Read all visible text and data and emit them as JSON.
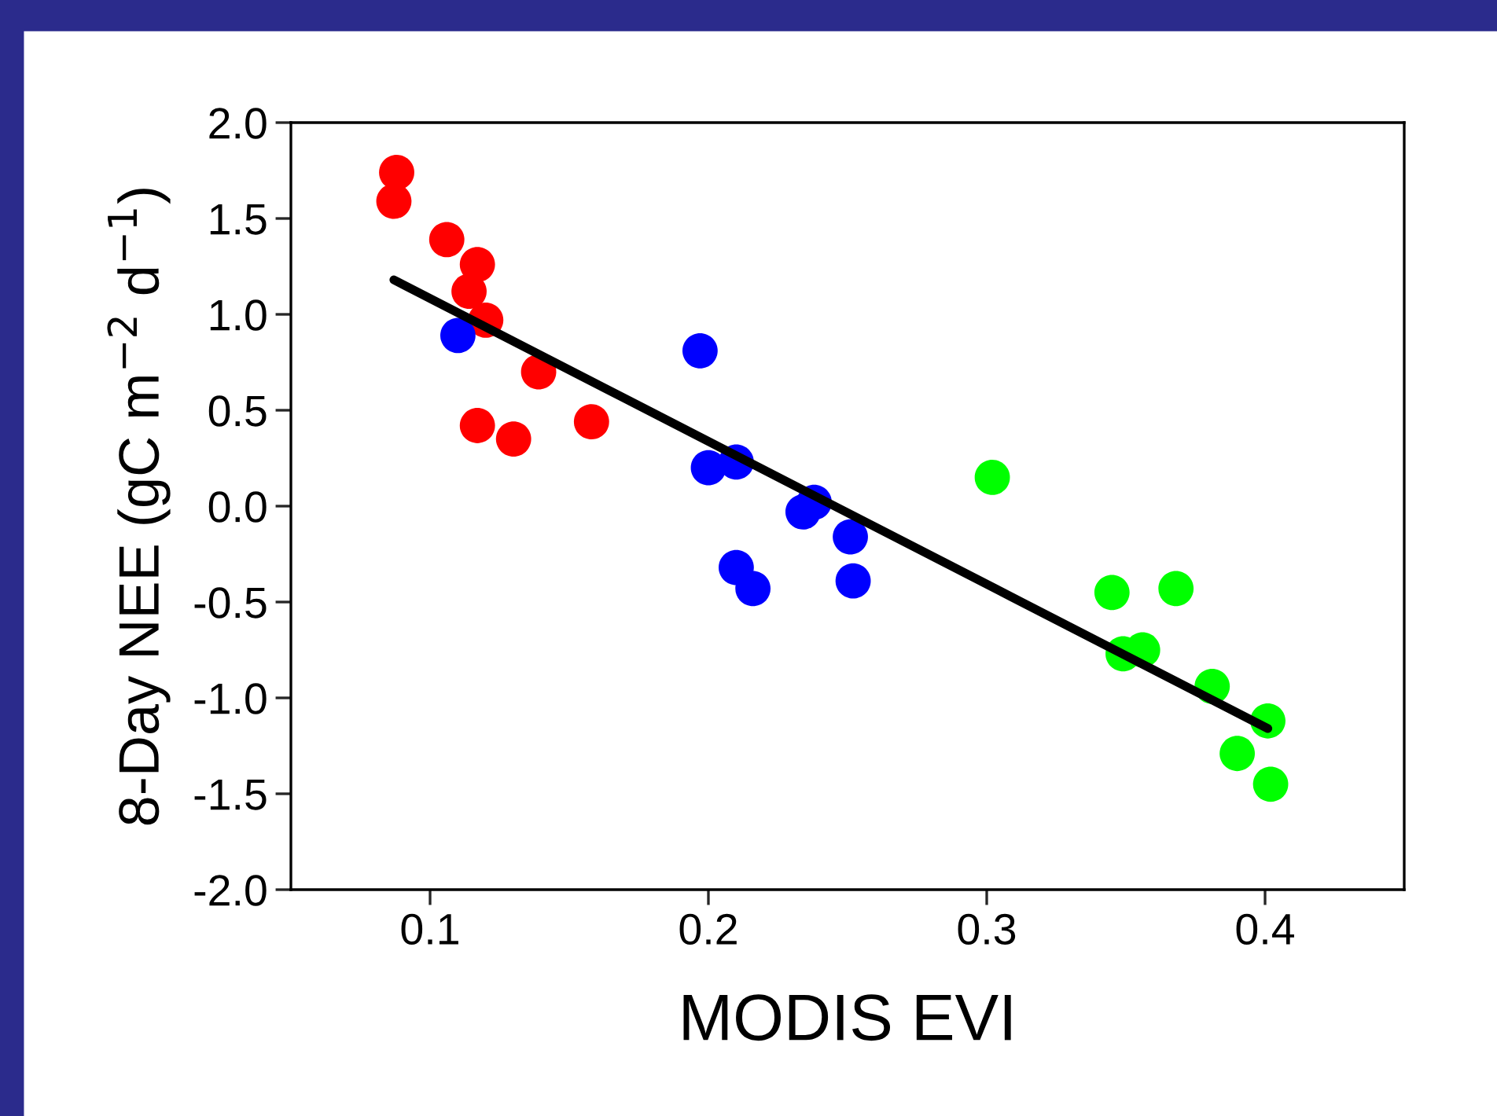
{
  "chart_data": {
    "type": "scatter",
    "xlabel": "MODIS EVI",
    "ylabel": "8-Day NEE (gC m$^{−2}$ d$^{−1}$)",
    "xlim": [
      0.05,
      0.45
    ],
    "xticks": [
      0.1,
      0.2,
      0.3,
      0.4
    ],
    "ylim": [
      -2.0,
      2.0
    ],
    "yticks": [
      {
        "value": 2.0,
        "label": "2.0"
      },
      {
        "value": 1.5,
        "label": "1.5"
      },
      {
        "value": 1.0,
        "label": "1.0"
      },
      {
        "value": 0.5,
        "label": "0.5"
      },
      {
        "value": 0.0,
        "label": "0.0"
      },
      {
        "value": -0.5,
        "label": "-0.5"
      },
      {
        "value": -1.0,
        "label": "-1.0"
      },
      {
        "value": -1.5,
        "label": "-1.5"
      },
      {
        "value": -2.0,
        "label": "-2.0"
      }
    ],
    "grid": false,
    "series": [
      {
        "marker": "circle",
        "color": "#ff0000",
        "x": [
          0.088,
          0.087,
          0.106,
          0.117,
          0.114,
          0.12,
          0.139,
          0.117,
          0.13,
          0.158
        ],
        "values": [
          1.74,
          1.59,
          1.39,
          1.26,
          1.12,
          0.97,
          0.7,
          0.42,
          0.35,
          0.44
        ]
      },
      {
        "marker": "circle",
        "color": "#0000ff",
        "x": [
          0.11,
          0.197,
          0.2,
          0.21,
          0.21,
          0.216,
          0.234,
          0.238,
          0.251,
          0.252
        ],
        "values": [
          0.89,
          0.81,
          0.2,
          0.23,
          -0.32,
          -0.43,
          -0.03,
          0.02,
          -0.16,
          -0.39
        ]
      },
      {
        "marker": "circle",
        "color": "#00ff00",
        "x": [
          0.302,
          0.345,
          0.349,
          0.356,
          0.368,
          0.381,
          0.401,
          0.39,
          0.402
        ],
        "values": [
          0.15,
          -0.45,
          -0.77,
          -0.75,
          -0.43,
          -0.94,
          -1.12,
          -1.29,
          -1.45
        ]
      },
      {
        "type": "line",
        "marker": "none",
        "color": "#000000",
        "x": [
          0.087,
          0.401
        ],
        "values": [
          1.18,
          -1.16
        ]
      }
    ]
  }
}
